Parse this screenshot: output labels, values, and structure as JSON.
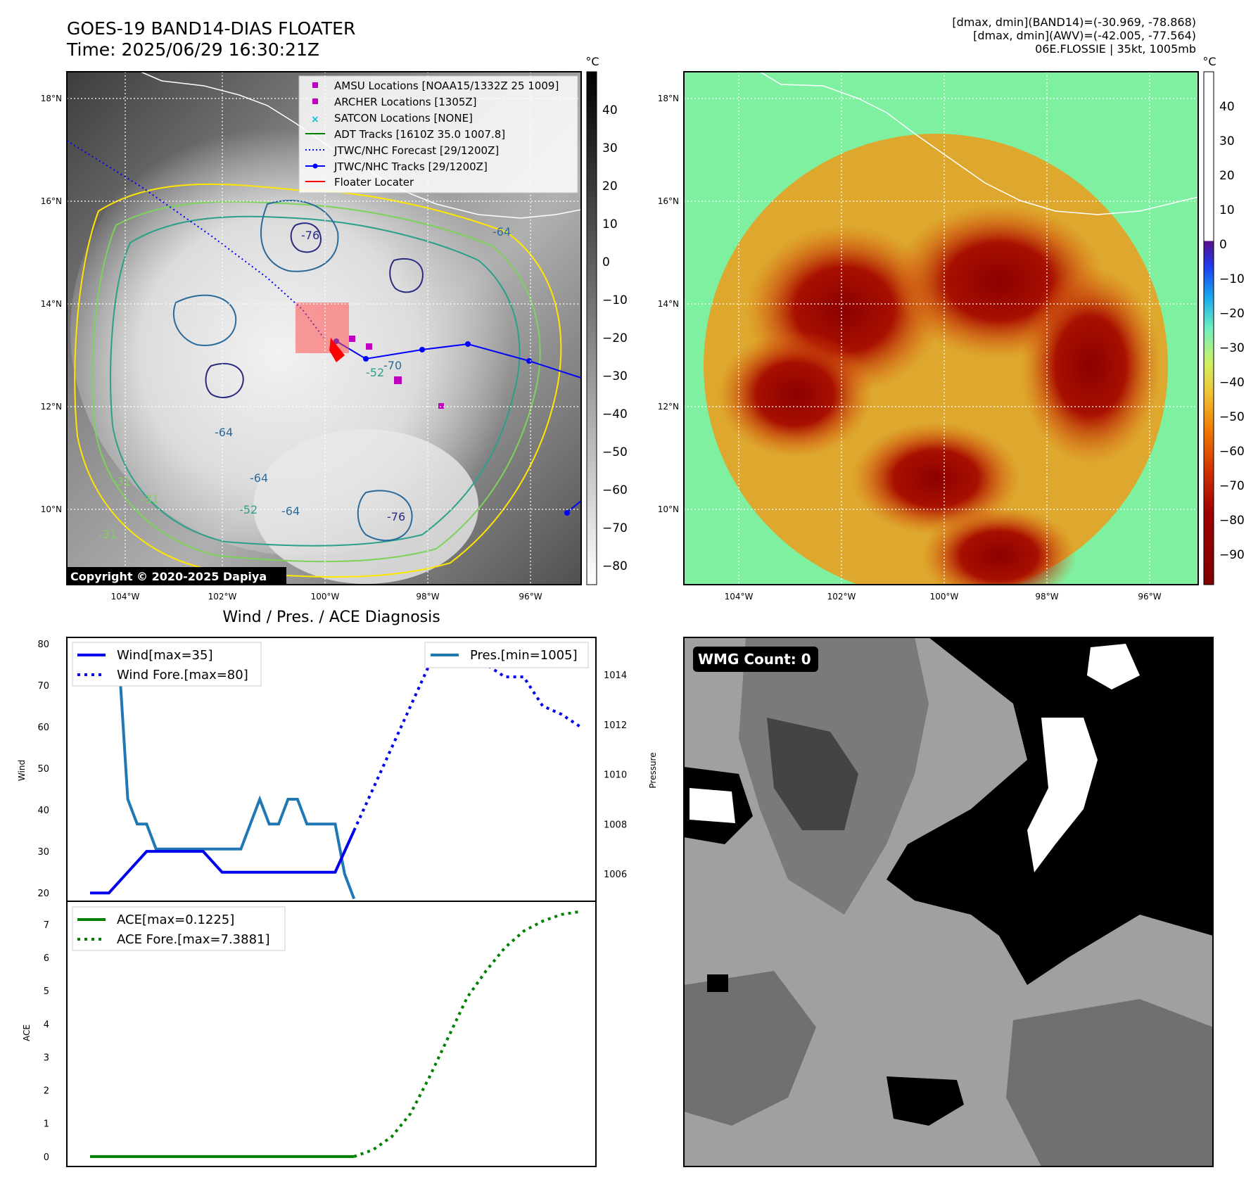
{
  "header": {
    "title_line1": "GOES-19 BAND14-DIAS FLOATER",
    "title_line2": "Time: 2025/06/29 16:30:21Z",
    "info_line1": "[dmax, dmin](BAND14)=(-30.969, -78.868)",
    "info_line2": "[dmax, dmin](AWV)=(-42.005, -77.564)",
    "info_line3": "06E.FLOSSIE | 35kt, 1005mb"
  },
  "map_axes": {
    "lon_ticks": [
      "104°W",
      "102°W",
      "100°W",
      "98°W",
      "96°W"
    ],
    "lat_ticks": [
      "18°N",
      "16°N",
      "14°N",
      "12°N",
      "10°N"
    ]
  },
  "ir_panel": {
    "copyright": "Copyright © 2020-2025 Dapiya",
    "contour_labels": [
      "-76",
      "-70",
      "-64",
      "-64",
      "-64",
      "-52",
      "-31",
      "-76",
      "-52",
      "-31",
      "-31",
      "-64"
    ],
    "colorbar": {
      "unit": "°C",
      "ticks": [
        "40",
        "30",
        "20",
        "10",
        "0",
        "−10",
        "−20",
        "−30",
        "−40",
        "−50",
        "−60",
        "−70",
        "−80"
      ]
    },
    "legend": [
      "AMSU Locations [NOAA15/1332Z 25 1009]",
      "ARCHER Locations [1305Z]",
      "SATCON Locations [NONE]",
      "ADT Tracks [1610Z 35.0 1007.8]",
      "JTWC/NHC Forecast [29/1200Z]",
      "JTWC/NHC Tracks [29/1200Z]",
      "Floater Locater"
    ],
    "colors": {
      "amsu": "#c000c0",
      "archer": "#c000c0",
      "satcon": "#17becf",
      "adt": "#008000",
      "forecast": "#0000ff",
      "tracks": "#0000ff",
      "floater": "#ff0000"
    }
  },
  "awv_panel": {
    "colorbar": {
      "unit": "°C",
      "ticks": [
        "40",
        "30",
        "20",
        "10",
        "0",
        "−10",
        "−20",
        "−30",
        "−40",
        "−50",
        "−60",
        "−70",
        "−80",
        "−90"
      ]
    }
  },
  "wmg_panel": {
    "label": "WMG Count: 0"
  },
  "diagnosis": {
    "title": "Wind / Pres. / ACE Diagnosis",
    "wind_ylabel": "Wind",
    "pres_ylabel": "Pressure",
    "ace_ylabel": "ACE",
    "wind_ticks": [
      "80",
      "70",
      "60",
      "50",
      "40",
      "30",
      "20"
    ],
    "pres_ticks": [
      "1014",
      "1012",
      "1010",
      "1008",
      "1006"
    ],
    "ace_ticks": [
      "7",
      "6",
      "5",
      "4",
      "3",
      "2",
      "1",
      "0"
    ],
    "legend_wind": [
      "Wind[max=35]",
      "Wind Fore.[max=80]"
    ],
    "legend_pres": [
      "Pres.[min=1005]"
    ],
    "legend_ace": [
      "ACE[max=0.1225]",
      "ACE Fore.[max=7.3881]"
    ]
  },
  "chart_data": {
    "type": "line",
    "charts": [
      {
        "type": "line",
        "title": "Wind / Pres. / ACE Diagnosis",
        "ylabel": "Wind",
        "ylim": [
          18,
          81.5
        ],
        "series": [
          {
            "name": "Wind[max=35]",
            "style": "solid",
            "color": "#0000ee",
            "x": [
              0,
              2,
              4,
              6,
              8,
              10,
              12,
              14,
              16,
              18,
              20,
              22,
              24,
              26,
              28
            ],
            "values": [
              20,
              20,
              25,
              30,
              30,
              30,
              30,
              25,
              25,
              25,
              25,
              25,
              25,
              25,
              35
            ]
          },
          {
            "name": "Wind Fore.[max=80]",
            "style": "dotted",
            "color": "#0000ee",
            "x": [
              28,
              30,
              32,
              34,
              36,
              38,
              40,
              42,
              44,
              46,
              48,
              50,
              52
            ],
            "values": [
              35,
              45,
              55,
              65,
              75,
              80,
              80,
              75,
              72,
              72,
              65,
              63,
              60
            ]
          },
          {
            "name": "Pres.[min=1005]",
            "style": "solid",
            "color": "#1f77b4",
            "axis": "right",
            "ylim": [
              1004.9,
              1015.5
            ],
            "x": [
              0,
              1,
              2,
              3,
              4,
              5,
              6,
              7,
              8,
              9,
              10,
              11,
              12,
              13,
              14,
              15,
              16,
              17,
              18,
              19,
              20,
              21,
              22,
              23,
              24,
              25,
              26,
              27,
              28
            ],
            "values": [
              1015,
              1015,
              1015,
              1015,
              1009,
              1008,
              1008,
              1007,
              1007,
              1007,
              1007,
              1007,
              1007,
              1007,
              1007,
              1007,
              1007,
              1008,
              1009,
              1008,
              1008,
              1009,
              1009,
              1008,
              1008,
              1008,
              1008,
              1006,
              1005
            ]
          }
        ]
      },
      {
        "type": "line",
        "ylabel": "ACE",
        "ylim": [
          -0.3,
          7.7
        ],
        "series": [
          {
            "name": "ACE[max=0.1225]",
            "style": "solid",
            "color": "#008000",
            "x": [
              0,
              28
            ],
            "values": [
              0,
              0
            ]
          },
          {
            "name": "ACE Fore.[max=7.3881]",
            "style": "dotted",
            "color": "#008000",
            "x": [
              28,
              30,
              32,
              34,
              36,
              38,
              40,
              42,
              44,
              46,
              48,
              50,
              52
            ],
            "values": [
              0,
              0.2,
              0.6,
              1.3,
              2.4,
              3.6,
              4.8,
              5.6,
              6.3,
              6.8,
              7.1,
              7.3,
              7.39
            ]
          }
        ]
      }
    ]
  }
}
